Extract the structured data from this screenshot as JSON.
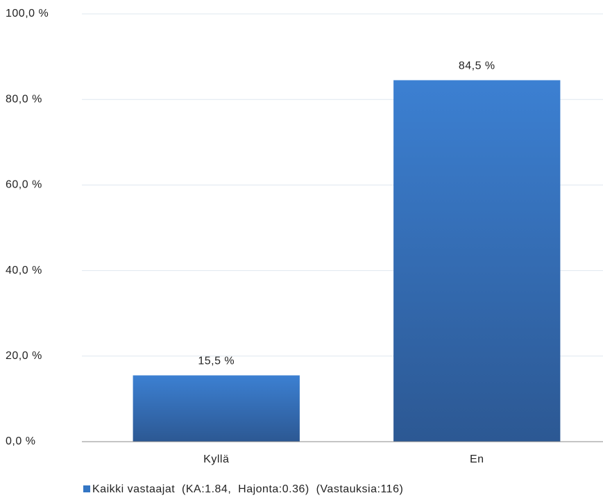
{
  "chart_data": {
    "type": "bar",
    "categories": [
      "Kyllä",
      "En"
    ],
    "series": [
      {
        "name": "Kaikki vastaajat  (KA:1.84,  Hajonta:0.36)  (Vastauksia:116)",
        "color": "#3476c4",
        "values": [
          15.5,
          84.5
        ],
        "value_labels": [
          "15,5 %",
          "84,5 %"
        ]
      }
    ],
    "ylim": [
      0,
      100
    ],
    "yticks": [
      {
        "value": 0,
        "label": "0,0 %"
      },
      {
        "value": 20,
        "label": "20,0 %"
      },
      {
        "value": 40,
        "label": "40,0 %"
      },
      {
        "value": 60,
        "label": "60,0 %"
      },
      {
        "value": 80,
        "label": "80,0 %"
      },
      {
        "value": 100,
        "label": "100,0 %"
      }
    ],
    "grid": true,
    "legend": "bottom"
  }
}
